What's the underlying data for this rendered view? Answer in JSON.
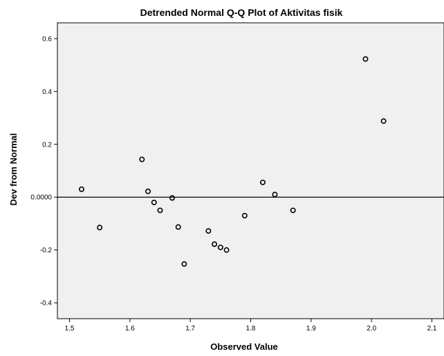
{
  "chart_data": {
    "type": "scatter",
    "title": "Detrended Normal Q-Q Plot of Aktivitas fisik",
    "xlabel": "Observed Value",
    "ylabel": "Dev from Normal",
    "xlim": [
      1.48,
      2.12
    ],
    "ylim": [
      -0.46,
      0.66
    ],
    "xticks": [
      "1.5",
      "1.6",
      "1.7",
      "1.8",
      "1.9",
      "2.0",
      "2.1"
    ],
    "yticks": [
      "-0.4",
      "-0.2",
      "0.0000",
      "0.2",
      "0.4",
      "0.6"
    ],
    "reference_line_y": 0,
    "grid": false,
    "background": "#f0f0f0",
    "marker_color": "#000000",
    "points": [
      {
        "x": 1.52,
        "y": 0.03
      },
      {
        "x": 1.55,
        "y": -0.115
      },
      {
        "x": 1.62,
        "y": 0.143
      },
      {
        "x": 1.63,
        "y": 0.022
      },
      {
        "x": 1.64,
        "y": -0.02
      },
      {
        "x": 1.65,
        "y": -0.05
      },
      {
        "x": 1.67,
        "y": -0.003
      },
      {
        "x": 1.68,
        "y": -0.113
      },
      {
        "x": 1.69,
        "y": -0.253
      },
      {
        "x": 1.73,
        "y": -0.128
      },
      {
        "x": 1.74,
        "y": -0.178
      },
      {
        "x": 1.75,
        "y": -0.19
      },
      {
        "x": 1.76,
        "y": -0.2
      },
      {
        "x": 1.79,
        "y": -0.07
      },
      {
        "x": 1.82,
        "y": 0.056
      },
      {
        "x": 1.84,
        "y": 0.01
      },
      {
        "x": 1.87,
        "y": -0.05
      },
      {
        "x": 1.99,
        "y": 0.523
      },
      {
        "x": 2.02,
        "y": 0.288
      }
    ]
  }
}
